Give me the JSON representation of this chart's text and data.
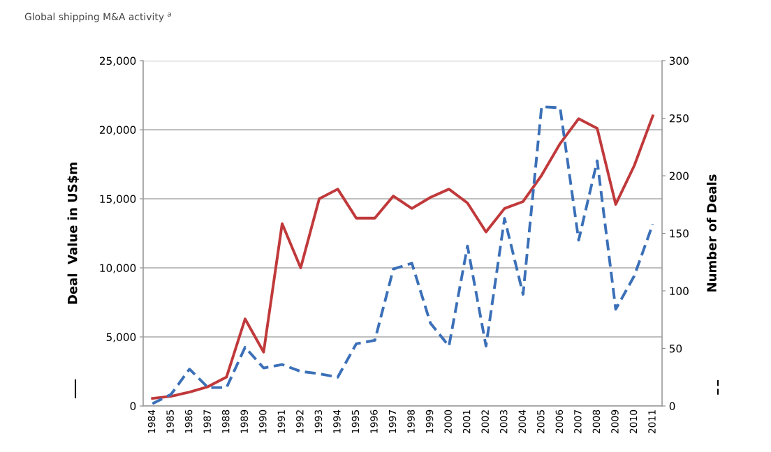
{
  "chart_data": {
    "type": "line",
    "title": "Global shipping M&A activity $^{a}$",
    "categories": [
      "1984",
      "1985",
      "1986",
      "1987",
      "1988",
      "1989",
      "1990",
      "1991",
      "1992",
      "1993",
      "1994",
      "1995",
      "1996",
      "1997",
      "1998",
      "1999",
      "2000",
      "2001",
      "2002",
      "2003",
      "2004",
      "2005",
      "2006",
      "2007",
      "2008",
      "2009",
      "2010",
      "2011"
    ],
    "series": [
      {
        "color": "#c0393b",
        "line_style": "solid",
        "values": [
          550,
          700,
          1000,
          1400,
          2100,
          6300,
          3900,
          13200,
          10000,
          15000,
          15700,
          13600,
          13600,
          15200,
          14300,
          15100,
          15700,
          14700,
          12600,
          14300,
          14800,
          16700,
          19000,
          20800,
          20100,
          14600,
          17400,
          21000
        ]
      },
      {
        "color": "#3b70b8",
        "line_style": "dashed",
        "axis": "y2",
        "values": [
          2,
          10,
          32,
          16,
          16,
          51,
          33,
          36,
          30,
          28,
          25,
          54,
          57,
          119,
          124,
          72,
          52,
          139,
          52,
          163,
          97,
          260,
          259,
          144,
          213,
          84,
          113,
          158
        ]
      }
    ],
    "ylabel": "Deal  Value in US$m",
    "y2label": "Number of Deals",
    "ylim": [
      0,
      25000
    ],
    "yticks": [
      {
        "value": 0,
        "label": "0"
      },
      {
        "value": 5000,
        "label": "5,000"
      },
      {
        "value": 10000,
        "label": "10,000"
      },
      {
        "value": 15000,
        "label": "15,000"
      },
      {
        "value": 20000,
        "label": "20,000"
      },
      {
        "value": 25000,
        "label": "25,000"
      }
    ],
    "y2lim": [
      0,
      300
    ],
    "y2ticks": [
      0,
      50,
      100,
      150,
      200,
      250,
      300
    ],
    "grid": "y"
  }
}
